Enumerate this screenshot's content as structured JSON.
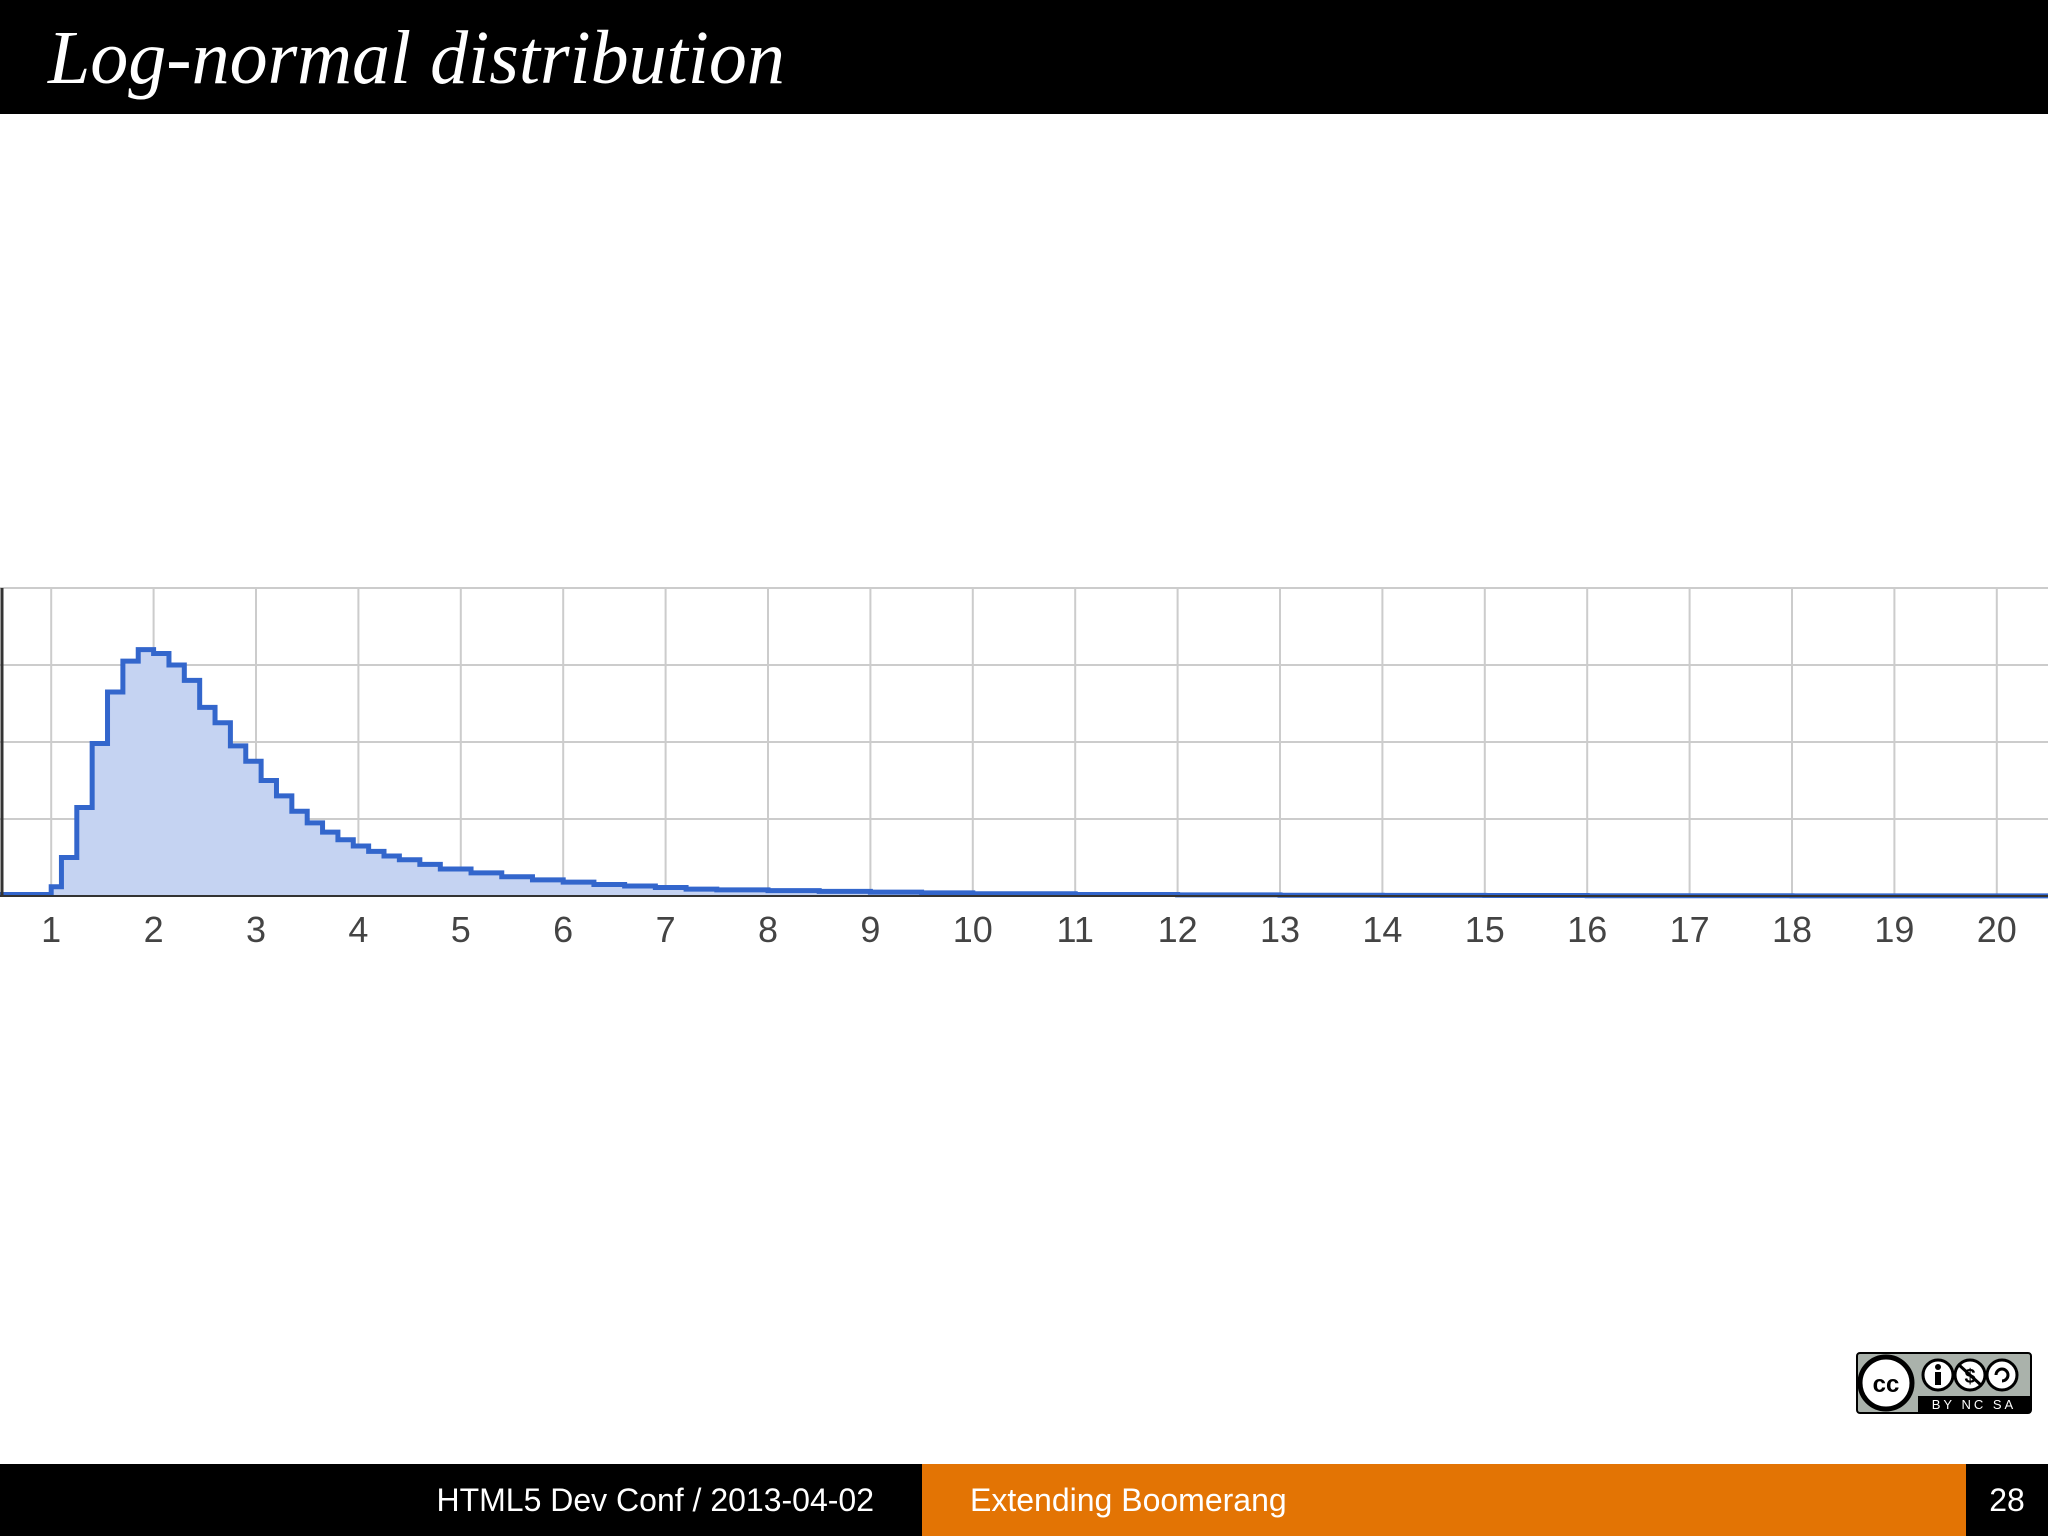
{
  "slide": {
    "title": "Log-normal distribution"
  },
  "footer": {
    "left": "HTML5 Dev Conf / 2013-04-02",
    "center": "Extending Boomerang",
    "page_number": "28"
  },
  "license_badge": {
    "icon": "cc-by-nc-sa-icon",
    "text": "BY NC SA"
  },
  "colors": {
    "series_line": "#3366cc",
    "series_fill": "#c5d3f2",
    "grid": "#cccccc",
    "accent": "#e37404"
  },
  "chart_data": {
    "type": "area",
    "step": true,
    "title": "",
    "xlabel": "",
    "ylabel": "",
    "xlim": [
      0.5,
      20.5
    ],
    "ylim": [
      0,
      4
    ],
    "grid": true,
    "x_ticks": [
      "1",
      "2",
      "3",
      "4",
      "5",
      "6",
      "7",
      "8",
      "9",
      "10",
      "11",
      "12",
      "13",
      "14",
      "15",
      "16",
      "17",
      "18",
      "19",
      "20"
    ],
    "y_tick_labels": [],
    "series": [
      {
        "x": [
          0.5,
          1.0,
          1.1,
          1.25,
          1.4,
          1.55,
          1.7,
          1.85,
          2.0,
          2.15,
          2.3,
          2.45,
          2.6,
          2.75,
          2.9,
          3.05,
          3.2,
          3.35,
          3.5,
          3.65,
          3.8,
          3.95,
          4.1,
          4.25,
          4.4,
          4.6,
          4.8,
          5.1,
          5.4,
          5.7,
          6.0,
          6.3,
          6.6,
          6.9,
          7.2,
          7.5,
          8.0,
          8.5,
          9.0,
          9.5,
          10.0,
          11.0,
          12.0,
          13.0,
          14.0,
          15.0,
          16.0,
          17.0,
          18.0,
          19.0,
          20.0,
          20.5
        ],
        "y": [
          0.02,
          0.12,
          0.5,
          1.15,
          1.98,
          2.65,
          3.05,
          3.2,
          3.15,
          3.0,
          2.8,
          2.45,
          2.25,
          1.95,
          1.75,
          1.5,
          1.3,
          1.1,
          0.95,
          0.83,
          0.73,
          0.65,
          0.58,
          0.52,
          0.47,
          0.41,
          0.35,
          0.3,
          0.25,
          0.21,
          0.18,
          0.15,
          0.13,
          0.11,
          0.09,
          0.08,
          0.07,
          0.06,
          0.05,
          0.04,
          0.03,
          0.02,
          0.015,
          0.01,
          0.008,
          0.006,
          0.004,
          0.003,
          0.002,
          0.001,
          0.001,
          0.001
        ]
      }
    ]
  }
}
